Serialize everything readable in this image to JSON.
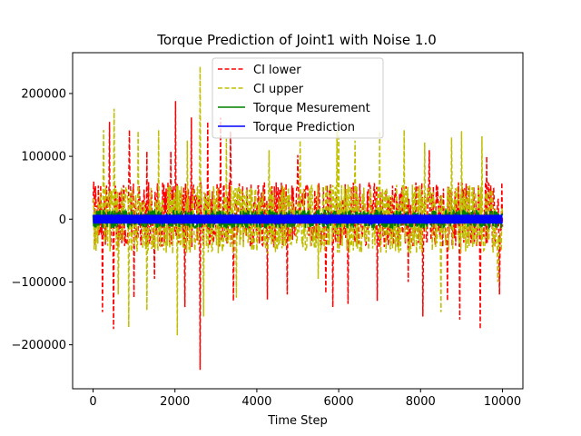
{
  "chart_data": {
    "type": "line",
    "title": "Torque Prediction of Joint1 with Noise 1.0",
    "xlabel": "Time Step",
    "ylabel": "",
    "xlim": [
      -500,
      10500
    ],
    "ylim": [
      -270000,
      265000
    ],
    "xticks": [
      0,
      2000,
      4000,
      6000,
      8000,
      10000
    ],
    "yticks": [
      -200000,
      -100000,
      0,
      100000,
      200000
    ],
    "grid": false,
    "legend_position": "top-center",
    "n_points": 10000,
    "series": [
      {
        "name": "CI lower",
        "color": "#ff0000",
        "style": "dashed",
        "typical_range": [
          -45000,
          60000
        ],
        "spikes": [
          {
            "x": 230,
            "y": -148000
          },
          {
            "x": 400,
            "y": 155000
          },
          {
            "x": 500,
            "y": -175000
          },
          {
            "x": 880,
            "y": 142000
          },
          {
            "x": 1000,
            "y": -125000
          },
          {
            "x": 1320,
            "y": 108000
          },
          {
            "x": 1500,
            "y": -95000
          },
          {
            "x": 1900,
            "y": 108000
          },
          {
            "x": 2020,
            "y": 188000
          },
          {
            "x": 2240,
            "y": -140000
          },
          {
            "x": 2400,
            "y": 162000
          },
          {
            "x": 2620,
            "y": -240000
          },
          {
            "x": 2800,
            "y": 155000
          },
          {
            "x": 3120,
            "y": 162000
          },
          {
            "x": 3350,
            "y": 140000
          },
          {
            "x": 3430,
            "y": -130000
          },
          {
            "x": 4250,
            "y": -128000
          },
          {
            "x": 4740,
            "y": -120000
          },
          {
            "x": 5000,
            "y": 102000
          },
          {
            "x": 5680,
            "y": -118000
          },
          {
            "x": 5850,
            "y": -140000
          },
          {
            "x": 6230,
            "y": -135000
          },
          {
            "x": 6950,
            "y": -130000
          },
          {
            "x": 7700,
            "y": -100000
          },
          {
            "x": 8050,
            "y": -155000
          },
          {
            "x": 8220,
            "y": 110000
          },
          {
            "x": 8650,
            "y": -130000
          },
          {
            "x": 8950,
            "y": -160000
          },
          {
            "x": 9450,
            "y": -175000
          },
          {
            "x": 9620,
            "y": 100000
          },
          {
            "x": 9930,
            "y": -120000
          }
        ]
      },
      {
        "name": "CI upper",
        "color": "#bfbf00",
        "style": "dashed",
        "typical_range": [
          -55000,
          55000
        ],
        "spikes": [
          {
            "x": 250,
            "y": 142000
          },
          {
            "x": 520,
            "y": 176000
          },
          {
            "x": 620,
            "y": -120000
          },
          {
            "x": 870,
            "y": -172000
          },
          {
            "x": 1100,
            "y": 140000
          },
          {
            "x": 1320,
            "y": -145000
          },
          {
            "x": 1600,
            "y": 142000
          },
          {
            "x": 2050,
            "y": -185000
          },
          {
            "x": 2300,
            "y": 125000
          },
          {
            "x": 2620,
            "y": 243000
          },
          {
            "x": 2700,
            "y": -155000
          },
          {
            "x": 3250,
            "y": 128000
          },
          {
            "x": 3500,
            "y": -125000
          },
          {
            "x": 4300,
            "y": 110000
          },
          {
            "x": 5050,
            "y": 125000
          },
          {
            "x": 5500,
            "y": -95000
          },
          {
            "x": 5950,
            "y": 140000
          },
          {
            "x": 6000,
            "y": 152000
          },
          {
            "x": 6400,
            "y": 125000
          },
          {
            "x": 7000,
            "y": 140000
          },
          {
            "x": 7600,
            "y": 142000
          },
          {
            "x": 8100,
            "y": 122000
          },
          {
            "x": 8500,
            "y": -148000
          },
          {
            "x": 8750,
            "y": 130000
          },
          {
            "x": 9000,
            "y": 140000
          },
          {
            "x": 9500,
            "y": 132000
          },
          {
            "x": 9880,
            "y": -100000
          }
        ]
      },
      {
        "name": "Torque Mesurement",
        "color": "#008000",
        "style": "solid",
        "typical_range": [
          -14000,
          14000
        ],
        "spikes": []
      },
      {
        "name": "Torque Prediction",
        "color": "#0000ff",
        "style": "solid",
        "typical_range": [
          -7000,
          7000
        ],
        "spikes": []
      }
    ]
  }
}
